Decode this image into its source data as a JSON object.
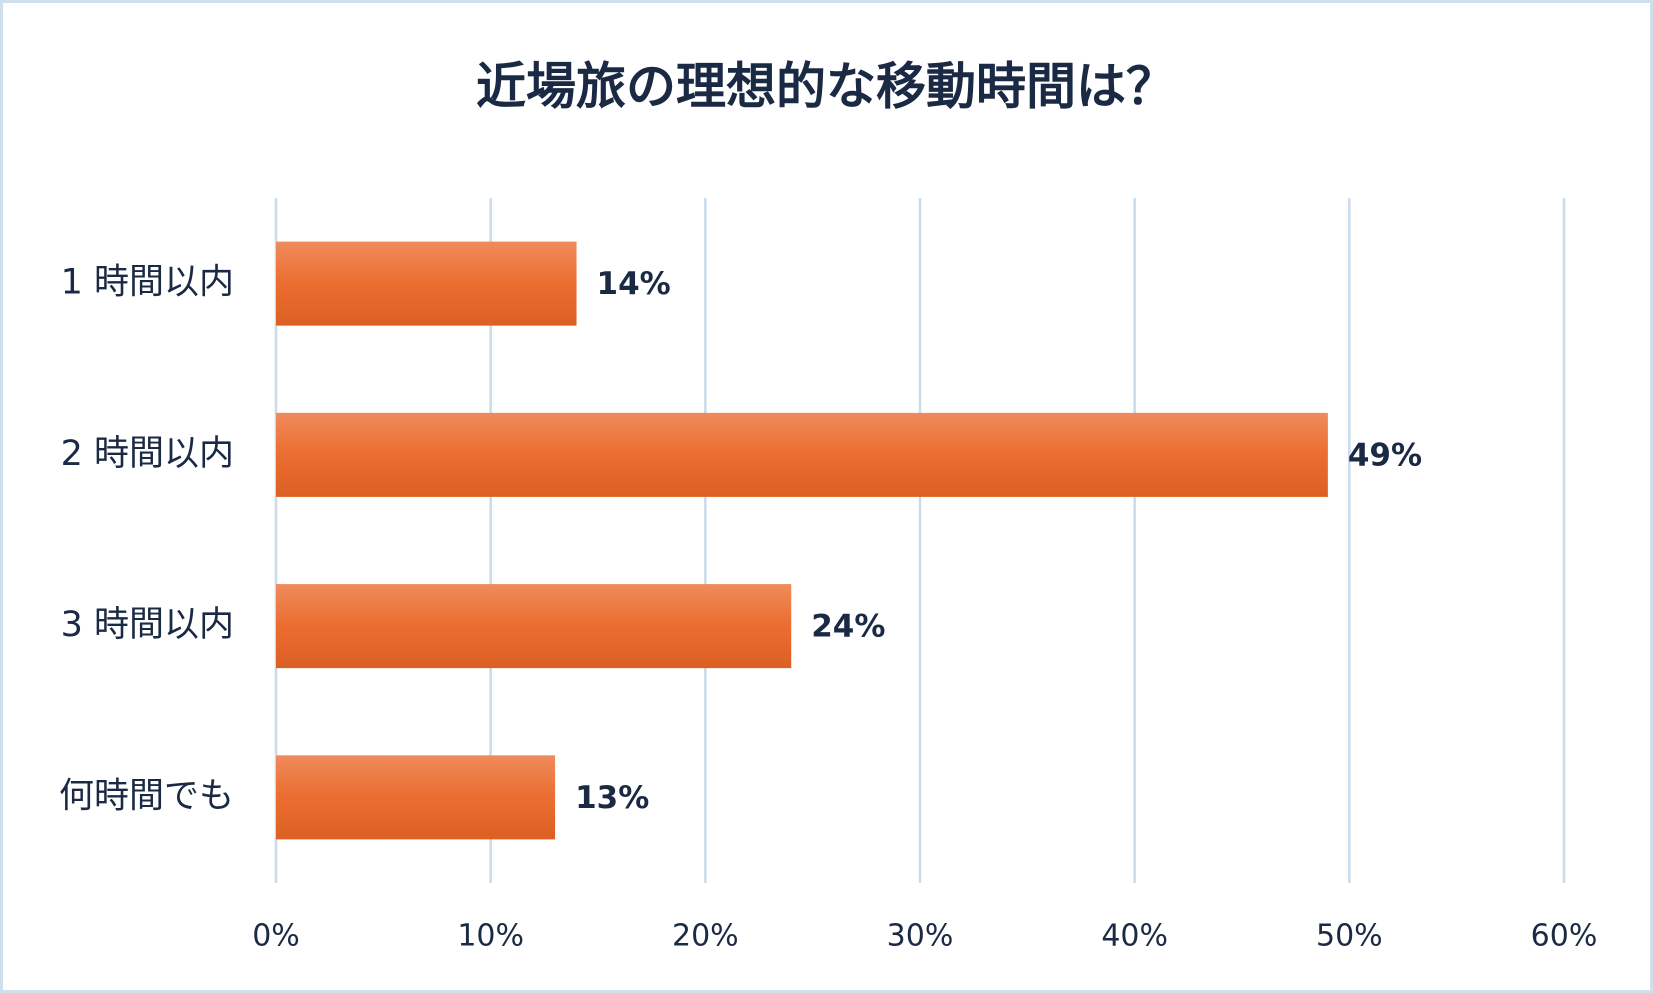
{
  "chart_data": {
    "type": "bar",
    "orientation": "horizontal",
    "title": "近場旅の理想的な移動時間は？",
    "categories": [
      "1 時間以内",
      "2 時間以内",
      "3 時間以内",
      "何時間でも"
    ],
    "values": [
      14,
      49,
      24,
      13
    ],
    "value_labels": [
      "14%",
      "49%",
      "24%",
      "13%"
    ],
    "color": "#ea6525",
    "xlim": [
      0,
      60
    ],
    "xticks": [
      {
        "value": 0,
        "label": "0%"
      },
      {
        "value": 10,
        "label": "10%"
      },
      {
        "value": 20,
        "label": "20%"
      },
      {
        "value": 30,
        "label": "30%"
      },
      {
        "value": 40,
        "label": "40%"
      },
      {
        "value": 50,
        "label": "50%"
      },
      {
        "value": 60,
        "label": "60%"
      }
    ],
    "grid": true
  }
}
